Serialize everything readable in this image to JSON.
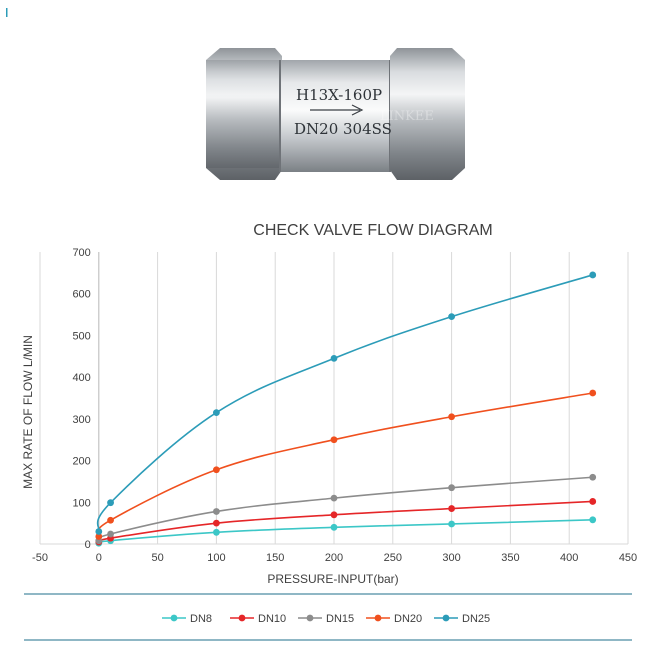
{
  "product": {
    "model": "H13X-160P",
    "size": "DN20 304SS",
    "brand": "LINKEE"
  },
  "chart_data": {
    "type": "line",
    "title": "CHECK VALVE FLOW DIAGRAM",
    "xlabel": "PRESSURE-INPUT(bar)",
    "ylabel": "MAX RATE OF FLOW  L/MIN",
    "xlim": [
      -50,
      450
    ],
    "ylim": [
      0,
      700
    ],
    "xticks": [
      -50,
      0,
      50,
      100,
      150,
      200,
      250,
      300,
      350,
      400,
      450
    ],
    "yticks": [
      0,
      100,
      200,
      300,
      400,
      500,
      600,
      700
    ],
    "grid": "vertical",
    "legend": "bottom",
    "x": [
      0,
      10,
      100,
      200,
      300,
      420
    ],
    "series": [
      {
        "name": "DN8",
        "color": "#3cc7c7",
        "values": [
          2,
          8,
          28,
          40,
          48,
          58
        ]
      },
      {
        "name": "DN10",
        "color": "#e52628",
        "values": [
          5,
          14,
          50,
          70,
          85,
          102
        ]
      },
      {
        "name": "DN15",
        "color": "#8c8c8c",
        "values": [
          8,
          24,
          78,
          110,
          135,
          160
        ]
      },
      {
        "name": "DN20",
        "color": "#f0501e",
        "values": [
          18,
          57,
          178,
          250,
          305,
          362
        ]
      },
      {
        "name": "DN25",
        "color": "#2c9cb8",
        "values": [
          30,
          99,
          315,
          445,
          545,
          645
        ]
      }
    ]
  }
}
